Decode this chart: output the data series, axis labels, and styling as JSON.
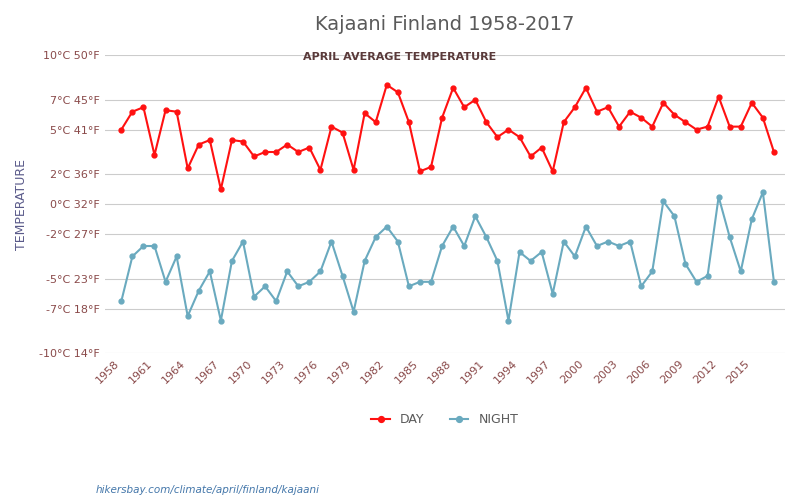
{
  "title": "Kajaani Finland 1958-2017",
  "subtitle": "APRIL AVERAGE TEMPERATURE",
  "ylabel": "TEMPERATURE",
  "footer": "hikersbay.com/climate/april/finland/kajaani",
  "legend_night": "NIGHT",
  "legend_day": "DAY",
  "years": [
    1958,
    1959,
    1960,
    1961,
    1962,
    1963,
    1964,
    1965,
    1966,
    1967,
    1968,
    1969,
    1970,
    1971,
    1972,
    1973,
    1974,
    1975,
    1976,
    1977,
    1978,
    1979,
    1980,
    1981,
    1982,
    1983,
    1984,
    1985,
    1986,
    1987,
    1988,
    1989,
    1990,
    1991,
    1992,
    1993,
    1994,
    1995,
    1996,
    1997,
    1998,
    1999,
    2000,
    2001,
    2002,
    2003,
    2004,
    2005,
    2006,
    2007,
    2008,
    2009,
    2010,
    2011,
    2012,
    2013,
    2014,
    2015,
    2016,
    2017
  ],
  "day_temps": [
    5.0,
    6.2,
    6.5,
    3.3,
    6.3,
    6.2,
    2.4,
    4.0,
    4.3,
    1.0,
    4.3,
    4.2,
    3.2,
    3.5,
    3.5,
    4.0,
    3.5,
    3.8,
    2.3,
    5.2,
    4.8,
    2.3,
    6.1,
    5.5,
    8.0,
    7.5,
    5.5,
    2.2,
    2.5,
    5.8,
    7.8,
    6.5,
    7.0,
    5.5,
    4.5,
    5.0,
    4.5,
    3.2,
    3.8,
    2.2,
    5.5,
    6.5,
    7.8,
    6.2,
    6.5,
    5.2,
    6.2,
    5.8,
    5.2,
    6.8,
    6.0,
    5.5,
    5.0,
    5.2,
    7.2,
    5.2,
    5.2,
    6.8,
    5.8,
    3.5
  ],
  "night_temps": [
    -6.5,
    -3.5,
    -2.8,
    -2.8,
    -5.2,
    -3.5,
    -7.5,
    -5.8,
    -4.5,
    -7.8,
    -3.8,
    -2.5,
    -6.2,
    -5.5,
    -6.5,
    -4.5,
    -5.5,
    -5.2,
    -4.5,
    -2.5,
    -4.8,
    -7.2,
    -3.8,
    -2.2,
    -1.5,
    -2.5,
    -5.5,
    -5.2,
    -5.2,
    -2.8,
    -1.5,
    -2.8,
    -0.8,
    -2.2,
    -3.8,
    -7.8,
    -3.2,
    -3.8,
    -3.2,
    -6.0,
    -2.5,
    -3.5,
    -1.5,
    -2.8,
    -2.5,
    -2.8,
    -2.5,
    -5.5,
    -4.5,
    0.2,
    -0.8,
    -4.0,
    -5.2,
    -4.8,
    0.5,
    -2.2,
    -4.5,
    -1.0,
    0.8,
    -5.2
  ],
  "day_color": "#ff1111",
  "night_color": "#6aaabf",
  "ylim_min": -10,
  "ylim_max": 10,
  "yticks_c": [
    10,
    7,
    5,
    2,
    0,
    -2,
    -5,
    -7,
    -10
  ],
  "yticks_f": [
    50,
    45,
    41,
    36,
    32,
    27,
    23,
    18,
    14
  ],
  "bg_color": "#ffffff",
  "grid_color": "#cccccc",
  "title_color": "#5a5a5a",
  "subtitle_color": "#5a3a3a",
  "axis_label_color": "#5a5a8a",
  "tick_color": "#8a4a4a"
}
